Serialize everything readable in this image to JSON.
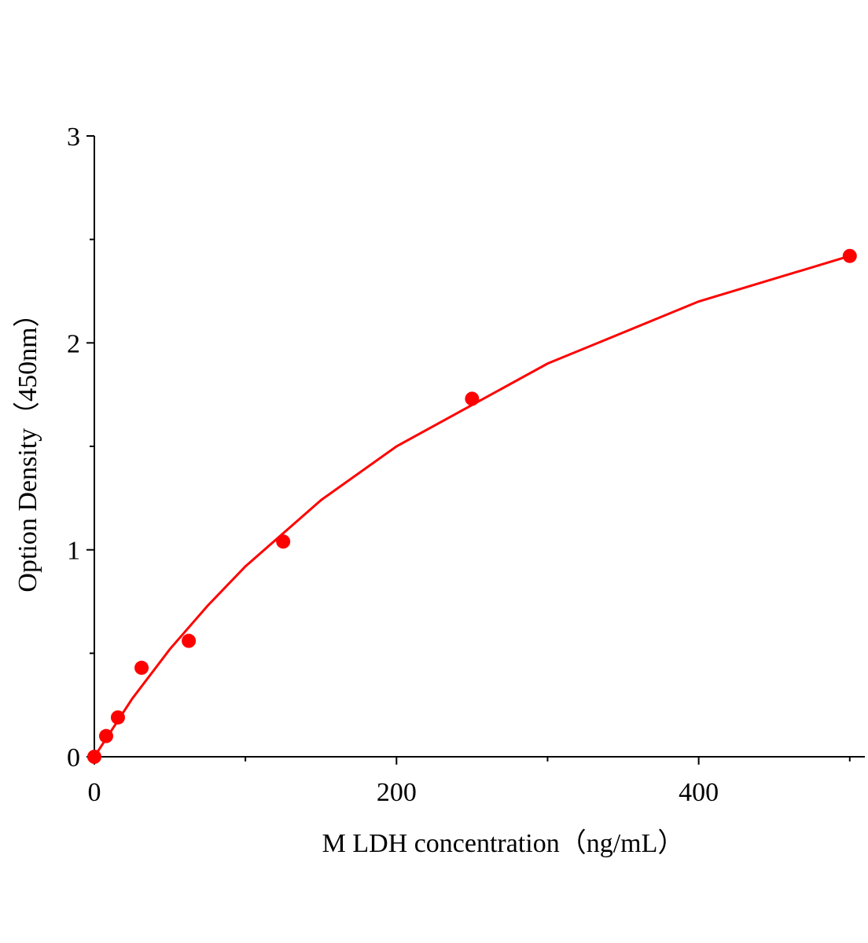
{
  "chart_data": {
    "type": "scatter",
    "x_label": "M LDH concentration（ng/mL）",
    "y_label": "Option Density（450nm）",
    "series": [
      {
        "kind": "points",
        "color": "#ff0000",
        "x": [
          0,
          7.8,
          15.6,
          31.25,
          62.5,
          125,
          250,
          500
        ],
        "values": [
          0,
          0.1,
          0.19,
          0.43,
          0.56,
          1.04,
          1.73,
          2.42
        ]
      },
      {
        "kind": "line",
        "color": "#ff0000",
        "x": [
          0,
          25,
          50,
          75,
          100,
          150,
          200,
          300,
          400,
          500
        ],
        "values": [
          0,
          0.28,
          0.52,
          0.73,
          0.92,
          1.24,
          1.5,
          1.9,
          2.2,
          2.42
        ]
      }
    ],
    "xlim": [
      0,
      510
    ],
    "ylim": [
      0,
      3
    ],
    "xticks": [
      0,
      200,
      400
    ],
    "yticks": [
      0,
      1,
      2,
      3
    ],
    "xminorticks": [
      100,
      300,
      500
    ],
    "yminorticks": [
      0.5,
      1.5,
      2.5
    ],
    "grid": false
  }
}
